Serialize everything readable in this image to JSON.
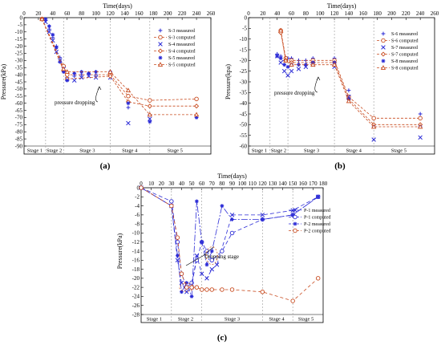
{
  "chart_data": [
    {
      "type": "line",
      "panel_label": "(a)",
      "xlabel": "Time(days)",
      "ylabel": "Pressure(kPa)",
      "xlim": [
        0,
        260
      ],
      "ylim": [
        -90,
        0
      ],
      "xticks": [
        0,
        20,
        40,
        60,
        80,
        100,
        120,
        140,
        160,
        180,
        200,
        220,
        240,
        260
      ],
      "yticks": [
        0,
        -5,
        -10,
        -15,
        -20,
        -25,
        -30,
        -35,
        -40,
        -45,
        -50,
        -55,
        -60,
        -65,
        -70,
        -75,
        -80,
        -85,
        -90
      ],
      "stage_lines": [
        30,
        55,
        120,
        175
      ],
      "stages": [
        {
          "label": "Stage 1",
          "x": 15
        },
        {
          "label": "Stage 2",
          "x": 42
        },
        {
          "label": "Stage 3",
          "x": 88
        },
        {
          "label": "Stage 4",
          "x": 147
        },
        {
          "label": "Stage 5",
          "x": 210
        }
      ],
      "annotation": "pressure dropping",
      "legend_position": "top-right",
      "series": [
        {
          "name": "S-3 measured",
          "marker": "plus",
          "points": [
            [
              30,
              -2
            ],
            [
              35,
              -8
            ],
            [
              40,
              -14
            ],
            [
              45,
              -20
            ],
            [
              50,
              -28
            ],
            [
              55,
              -34
            ],
            [
              60,
              -40
            ],
            [
              70,
              -41
            ],
            [
              80,
              -40
            ],
            [
              90,
              -39
            ],
            [
              100,
              -40
            ],
            [
              120,
              -40
            ],
            [
              145,
              -63
            ],
            [
              175,
              -68
            ]
          ]
        },
        {
          "name": "S-3 computed",
          "marker": "circle",
          "points": [
            [
              25,
              -1
            ],
            [
              55,
              -34
            ],
            [
              60,
              -40
            ],
            [
              120,
              -40
            ],
            [
              145,
              -55
            ],
            [
              175,
              -58
            ],
            [
              240,
              -57
            ]
          ]
        },
        {
          "name": "S-4 measured",
          "marker": "x",
          "points": [
            [
              30,
              -3
            ],
            [
              35,
              -10
            ],
            [
              40,
              -16
            ],
            [
              45,
              -24
            ],
            [
              50,
              -30
            ],
            [
              55,
              -36
            ],
            [
              60,
              -43
            ],
            [
              70,
              -44
            ],
            [
              80,
              -42
            ],
            [
              90,
              -41
            ],
            [
              100,
              -42
            ],
            [
              120,
              -42
            ],
            [
              145,
              -74
            ],
            [
              175,
              -71
            ]
          ]
        },
        {
          "name": "S-4 computed",
          "marker": "diamond",
          "points": [
            [
              25,
              -1
            ],
            [
              55,
              -37
            ],
            [
              60,
              -43
            ],
            [
              120,
              -41
            ],
            [
              145,
              -59
            ],
            [
              175,
              -62
            ],
            [
              240,
              -62
            ]
          ]
        },
        {
          "name": "S-5 measured",
          "marker": "star",
          "points": [
            [
              30,
              -1
            ],
            [
              35,
              -6
            ],
            [
              40,
              -12
            ],
            [
              45,
              -21
            ],
            [
              50,
              -31
            ],
            [
              55,
              -38
            ],
            [
              60,
              -44
            ],
            [
              70,
              -39
            ],
            [
              80,
              -38
            ],
            [
              90,
              -39
            ],
            [
              100,
              -38
            ],
            [
              120,
              -38
            ],
            [
              145,
              -60
            ],
            [
              175,
              -73
            ],
            [
              240,
              -70
            ]
          ]
        },
        {
          "name": "S-5 computed",
          "marker": "triangle",
          "points": [
            [
              25,
              -1
            ],
            [
              55,
              -36
            ],
            [
              60,
              -38
            ],
            [
              120,
              -38
            ],
            [
              145,
              -51
            ],
            [
              175,
              -68
            ],
            [
              240,
              -68
            ]
          ]
        }
      ]
    },
    {
      "type": "line",
      "panel_label": "(b)",
      "xlabel": "Time(days)",
      "ylabel": "Pressure(kpa)",
      "xlim": [
        0,
        260
      ],
      "ylim": [
        -60,
        0
      ],
      "xticks": [
        0,
        20,
        40,
        60,
        80,
        100,
        120,
        140,
        160,
        180,
        200,
        220,
        240,
        260
      ],
      "yticks": [
        0,
        -5,
        -10,
        -15,
        -20,
        -25,
        -30,
        -35,
        -40,
        -45,
        -50,
        -55,
        -60
      ],
      "stage_lines": [
        30,
        55,
        120,
        175
      ],
      "stages": [
        {
          "label": "Stage 1",
          "x": 15
        },
        {
          "label": "Stage 2",
          "x": 42
        },
        {
          "label": "Stage 3",
          "x": 88
        },
        {
          "label": "Stage 4",
          "x": 147
        },
        {
          "label": "Stage 5",
          "x": 210
        }
      ],
      "annotation": "pressure dropping",
      "legend_position": "top-right",
      "series": [
        {
          "name": "S-6 measured",
          "marker": "plus",
          "points": [
            [
              40,
              -17
            ],
            [
              45,
              -18
            ],
            [
              50,
              -20
            ],
            [
              55,
              -19
            ],
            [
              60,
              -19
            ],
            [
              70,
              -20
            ],
            [
              80,
              -20
            ],
            [
              90,
              -19
            ],
            [
              120,
              -19
            ],
            [
              140,
              -34
            ],
            [
              175,
              -47
            ],
            [
              240,
              -45
            ]
          ]
        },
        {
          "name": "S-6 computed",
          "marker": "circle",
          "points": [
            [
              45,
              -6
            ],
            [
              52,
              -19
            ],
            [
              60,
              -20
            ],
            [
              90,
              -20
            ],
            [
              120,
              -20
            ],
            [
              140,
              -37
            ],
            [
              175,
              -47
            ],
            [
              240,
              -47
            ]
          ]
        },
        {
          "name": "S-7 measured",
          "marker": "x",
          "points": [
            [
              40,
              -18
            ],
            [
              45,
              -21
            ],
            [
              50,
              -25
            ],
            [
              55,
              -27
            ],
            [
              60,
              -25
            ],
            [
              70,
              -24
            ],
            [
              80,
              -23
            ],
            [
              90,
              -22
            ],
            [
              120,
              -23
            ],
            [
              140,
              -37
            ],
            [
              175,
              -57
            ],
            [
              240,
              -56
            ]
          ]
        },
        {
          "name": "S-7 computed",
          "marker": "diamond",
          "points": [
            [
              45,
              -7
            ],
            [
              52,
              -20
            ],
            [
              60,
              -21
            ],
            [
              90,
              -21
            ],
            [
              120,
              -21
            ],
            [
              140,
              -38
            ],
            [
              175,
              -50
            ],
            [
              240,
              -50
            ]
          ]
        },
        {
          "name": "S-8 measured",
          "marker": "star",
          "points": [
            [
              40,
              -18
            ],
            [
              45,
              -19
            ],
            [
              50,
              -22
            ],
            [
              55,
              -23
            ],
            [
              60,
              -22
            ],
            [
              70,
              -22
            ],
            [
              80,
              -22
            ],
            [
              90,
              -21
            ],
            [
              120,
              -21
            ],
            [
              140,
              -38
            ],
            [
              175,
              -51
            ],
            [
              240,
              -51
            ]
          ]
        },
        {
          "name": "S-8 computed",
          "marker": "triangle",
          "points": [
            [
              45,
              -6
            ],
            [
              52,
              -20
            ],
            [
              60,
              -22
            ],
            [
              90,
              -22
            ],
            [
              120,
              -22
            ],
            [
              140,
              -39
            ],
            [
              175,
              -51
            ],
            [
              240,
              -51
            ]
          ]
        }
      ]
    },
    {
      "type": "line",
      "panel_label": "(c)",
      "xlabel": "Time(days)",
      "ylabel": "Pressure(kPa)",
      "xlim": [
        0,
        180
      ],
      "ylim": [
        -28,
        0
      ],
      "xticks": [
        0,
        10,
        20,
        30,
        40,
        50,
        60,
        70,
        80,
        90,
        100,
        110,
        120,
        130,
        140,
        150,
        160,
        170,
        180
      ],
      "yticks": [
        0,
        -2,
        -4,
        -6,
        -8,
        -10,
        -12,
        -14,
        -16,
        -18,
        -20,
        -22,
        -24,
        -26,
        -28
      ],
      "stage_lines": [
        30,
        60,
        120,
        150
      ],
      "stages": [
        {
          "label": "Stage 1",
          "x": 13
        },
        {
          "label": "Stage 2",
          "x": 44
        },
        {
          "label": "Stage 3",
          "x": 90
        },
        {
          "label": "Stage 4",
          "x": 134
        },
        {
          "label": "Stage 5",
          "x": 163
        }
      ],
      "annotation": "Dropping stage",
      "legend_position": "top-right",
      "series": [
        {
          "name": "P-1 measured",
          "marker": "x",
          "color": "#2b2bd6",
          "dash": "5,3",
          "points": [
            [
              0,
              0
            ],
            [
              30,
              -4
            ],
            [
              36,
              -16
            ],
            [
              40,
              -21
            ],
            [
              45,
              -23
            ],
            [
              50,
              -22
            ],
            [
              55,
              -15
            ],
            [
              60,
              -19
            ],
            [
              65,
              -20
            ],
            [
              70,
              -18
            ],
            [
              75,
              -17
            ],
            [
              90,
              -6
            ],
            [
              120,
              -6
            ],
            [
              150,
              -5
            ],
            [
              175,
              -2
            ]
          ]
        },
        {
          "name": "P-1 computed",
          "marker": "circle",
          "color": "#2b2bd6",
          "dash": "5,3",
          "points": [
            [
              0,
              0
            ],
            [
              30,
              -3
            ],
            [
              36,
              -12
            ],
            [
              40,
              -19
            ],
            [
              45,
              -22
            ],
            [
              50,
              -21
            ],
            [
              55,
              -16
            ],
            [
              60,
              -12
            ],
            [
              65,
              -14
            ],
            [
              70,
              -16
            ],
            [
              80,
              -14
            ],
            [
              90,
              -10
            ],
            [
              120,
              -7
            ],
            [
              150,
              -6
            ],
            [
              175,
              -2
            ]
          ]
        },
        {
          "name": "P-2 measured",
          "marker": "star",
          "color": "#2b2bd6",
          "dash": "8,2,2,2",
          "points": [
            [
              0,
              0
            ],
            [
              30,
              -4
            ],
            [
              36,
              -15
            ],
            [
              40,
              -23
            ],
            [
              45,
              -21
            ],
            [
              50,
              -24
            ],
            [
              55,
              -3
            ],
            [
              60,
              -12
            ],
            [
              65,
              -17
            ],
            [
              70,
              -14
            ],
            [
              80,
              -4
            ],
            [
              90,
              -7
            ],
            [
              120,
              -7
            ],
            [
              150,
              -6
            ],
            [
              175,
              -2
            ]
          ]
        },
        {
          "name": "P-2 computed",
          "marker": "circle",
          "color": "#c84a1e",
          "dash": "4,3",
          "points": [
            [
              0,
              0
            ],
            [
              30,
              -4
            ],
            [
              36,
              -11
            ],
            [
              40,
              -19
            ],
            [
              45,
              -22
            ],
            [
              50,
              -22
            ],
            [
              55,
              -22
            ],
            [
              60,
              -22.5
            ],
            [
              65,
              -22.5
            ],
            [
              70,
              -22.5
            ],
            [
              80,
              -22.5
            ],
            [
              90,
              -22.5
            ],
            [
              120,
              -23
            ],
            [
              150,
              -25
            ],
            [
              175,
              -20
            ]
          ]
        }
      ]
    }
  ]
}
